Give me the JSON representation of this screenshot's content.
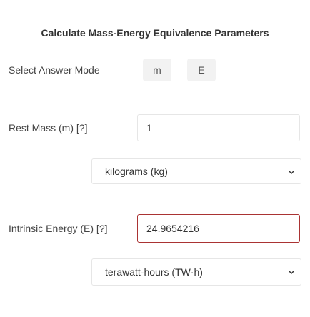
{
  "title": "Calculate Mass-Energy Equivalence Parameters",
  "answer_mode": {
    "label": "Select Answer Mode",
    "options": [
      "m",
      "E"
    ]
  },
  "fields": [
    {
      "label": "Rest Mass (m) [?]",
      "value": 1,
      "unit": "kilograms (kg)"
    },
    {
      "label": "Intrinsic Energy (E) [?]",
      "value": 24.9654216,
      "unit": "terawatt-hours (TW·h)"
    }
  ]
}
